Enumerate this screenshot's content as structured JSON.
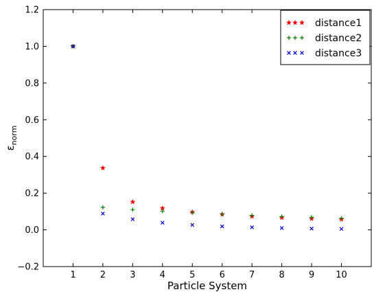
{
  "chart_data": {
    "type": "scatter",
    "title": "",
    "xlabel": "Particle System",
    "ylabel_base": "ε",
    "ylabel_sub": "norm",
    "xlim": [
      0,
      11
    ],
    "ylim": [
      -0.2,
      1.2
    ],
    "xticks": [
      1,
      2,
      3,
      4,
      5,
      6,
      7,
      8,
      9,
      10
    ],
    "yticks": [
      -0.2,
      0.0,
      0.2,
      0.4,
      0.6,
      0.8,
      1.0,
      1.2
    ],
    "ytick_labels": [
      "−0.2",
      "0.0",
      "0.2",
      "0.4",
      "0.6",
      "0.8",
      "1.0",
      "1.2"
    ],
    "grid": false,
    "legend_position": "top-right",
    "x": [
      1,
      2,
      3,
      4,
      5,
      6,
      7,
      8,
      9,
      10
    ],
    "series": [
      {
        "name": "distance1",
        "marker": "star",
        "color": "#ff0000",
        "values": [
          1.0,
          0.337,
          0.152,
          0.118,
          0.097,
          0.085,
          0.073,
          0.066,
          0.061,
          0.057
        ]
      },
      {
        "name": "distance2",
        "marker": "plus",
        "color": "#008000",
        "values": [
          1.0,
          0.123,
          0.11,
          0.102,
          0.094,
          0.086,
          0.079,
          0.073,
          0.069,
          0.064
        ]
      },
      {
        "name": "distance3",
        "marker": "x",
        "color": "#0000cc",
        "values": [
          1.0,
          0.089,
          0.058,
          0.039,
          0.027,
          0.019,
          0.014,
          0.01,
          0.007,
          0.005
        ]
      }
    ]
  }
}
